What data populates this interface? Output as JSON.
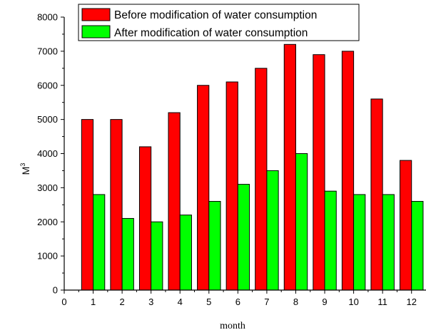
{
  "chart_data": {
    "type": "bar",
    "x": [
      1,
      2,
      3,
      4,
      5,
      6,
      7,
      8,
      9,
      10,
      11,
      12
    ],
    "series": [
      {
        "name": "Before modification of water consumption",
        "color": "#ff0000",
        "values": [
          5000,
          5000,
          4200,
          5200,
          6000,
          6100,
          6500,
          7200,
          6900,
          7000,
          5600,
          3800
        ]
      },
      {
        "name": "After modification of water consumption",
        "color": "#00ff00",
        "values": [
          2800,
          2100,
          2000,
          2200,
          2600,
          3100,
          3500,
          4000,
          2900,
          2800,
          2800,
          2600
        ]
      }
    ],
    "xlabel": "month",
    "ylabel_base": "M",
    "ylabel_sup": "3",
    "xlim": [
      0,
      12.5
    ],
    "ylim": [
      0,
      8000
    ],
    "xticks": [
      "0",
      "1",
      "2",
      "3",
      "4",
      "5",
      "6",
      "7",
      "8",
      "9",
      "10",
      "11",
      "12"
    ],
    "yticks": [
      "0",
      "1000",
      "2000",
      "3000",
      "4000",
      "5000",
      "6000",
      "7000",
      "8000"
    ],
    "legend_position": "top",
    "grid": false
  }
}
